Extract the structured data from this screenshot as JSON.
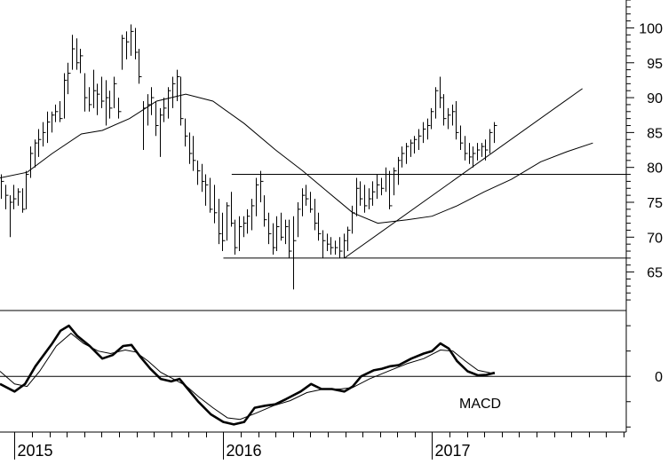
{
  "chart_data": [
    {
      "type": "bar",
      "subtype": "weekly-ohlc",
      "y_ticks": [
        65,
        70,
        75,
        80,
        85,
        90,
        95,
        100
      ],
      "ylim": [
        60.5,
        104
      ],
      "x_tick_labels": [
        {
          "label": "2015",
          "date": 2015.0
        },
        {
          "label": "2016",
          "date": 2016.0
        },
        {
          "label": "2017",
          "date": 2017.0
        }
      ],
      "xlim": [
        2014.93,
        2017.93
      ],
      "moving_average": [
        [
          2014.93,
          78.5
        ],
        [
          2015.06,
          79.3
        ],
        [
          2015.18,
          82.0
        ],
        [
          2015.32,
          84.8
        ],
        [
          2015.42,
          85.3
        ],
        [
          2015.55,
          87.0
        ],
        [
          2015.68,
          89.5
        ],
        [
          2015.82,
          90.5
        ],
        [
          2015.95,
          89.5
        ],
        [
          2016.1,
          86.3
        ],
        [
          2016.25,
          82.5
        ],
        [
          2016.38,
          79.5
        ],
        [
          2016.5,
          76.5
        ],
        [
          2016.62,
          73.5
        ],
        [
          2016.74,
          72.0
        ],
        [
          2016.88,
          72.5
        ],
        [
          2017.0,
          73.0
        ],
        [
          2017.12,
          74.5
        ],
        [
          2017.25,
          76.5
        ],
        [
          2017.38,
          78.3
        ],
        [
          2017.52,
          80.8
        ],
        [
          2017.65,
          82.3
        ],
        [
          2017.77,
          83.5
        ]
      ],
      "ohlc": [
        [
          2014.935,
          79.0,
          75.5,
          78.0
        ],
        [
          2014.955,
          77.5,
          74.0,
          76.0
        ],
        [
          2014.975,
          76.0,
          70.0,
          75.0
        ],
        [
          2014.995,
          77.5,
          74.0,
          75.5
        ],
        [
          2015.015,
          77.0,
          74.5,
          76.5
        ],
        [
          2015.035,
          77.0,
          73.5,
          74.0
        ],
        [
          2015.055,
          79.5,
          74.0,
          79.0
        ],
        [
          2015.075,
          83.0,
          78.5,
          82.0
        ],
        [
          2015.095,
          84.0,
          80.0,
          83.5
        ],
        [
          2015.115,
          85.5,
          81.5,
          84.0
        ],
        [
          2015.135,
          86.5,
          83.0,
          85.0
        ],
        [
          2015.155,
          88.0,
          83.5,
          86.5
        ],
        [
          2015.175,
          88.0,
          85.0,
          87.5
        ],
        [
          2015.195,
          89.0,
          86.5,
          88.0
        ],
        [
          2015.215,
          89.5,
          86.5,
          87.0
        ],
        [
          2015.235,
          93.5,
          87.0,
          92.5
        ],
        [
          2015.255,
          95.0,
          90.5,
          93.5
        ],
        [
          2015.275,
          99.0,
          94.0,
          97.0
        ],
        [
          2015.295,
          98.5,
          94.0,
          95.0
        ],
        [
          2015.315,
          97.0,
          93.5,
          96.0
        ],
        [
          2015.335,
          93.5,
          88.0,
          90.0
        ],
        [
          2015.355,
          91.5,
          88.0,
          89.0
        ],
        [
          2015.375,
          94.0,
          88.5,
          91.0
        ],
        [
          2015.395,
          92.0,
          87.5,
          90.5
        ],
        [
          2015.415,
          93.0,
          88.5,
          89.5
        ],
        [
          2015.435,
          92.5,
          86.0,
          90.0
        ],
        [
          2015.455,
          91.0,
          87.0,
          88.5
        ],
        [
          2015.475,
          93.0,
          88.5,
          92.0
        ],
        [
          2015.495,
          90.0,
          87.0,
          88.0
        ],
        [
          2015.515,
          99.0,
          94.0,
          98.5
        ],
        [
          2015.535,
          99.5,
          95.5,
          98.0
        ],
        [
          2015.555,
          100.5,
          96.0,
          99.5
        ],
        [
          2015.575,
          100.0,
          95.5,
          96.5
        ],
        [
          2015.595,
          97.0,
          92.0,
          93.0
        ],
        [
          2015.615,
          89.5,
          82.5,
          88.5
        ],
        [
          2015.635,
          90.5,
          86.0,
          89.0
        ],
        [
          2015.655,
          91.5,
          87.5,
          90.0
        ],
        [
          2015.675,
          89.5,
          84.5,
          86.0
        ],
        [
          2015.695,
          88.5,
          81.5,
          87.5
        ],
        [
          2015.715,
          90.0,
          86.5,
          88.5
        ],
        [
          2015.735,
          91.5,
          87.0,
          91.0
        ],
        [
          2015.755,
          93.0,
          88.5,
          92.0
        ],
        [
          2015.775,
          94.0,
          89.5,
          93.0
        ],
        [
          2015.795,
          93.0,
          86.0,
          87.0
        ],
        [
          2015.815,
          87.0,
          83.0,
          84.5
        ],
        [
          2015.835,
          85.0,
          80.5,
          82.0
        ],
        [
          2015.855,
          84.5,
          79.5,
          81.0
        ],
        [
          2015.875,
          81.0,
          77.5,
          79.5
        ],
        [
          2015.895,
          80.5,
          76.5,
          78.0
        ],
        [
          2015.915,
          79.0,
          74.5,
          77.5
        ],
        [
          2015.935,
          78.5,
          73.5,
          74.0
        ],
        [
          2015.955,
          77.5,
          72.0,
          73.5
        ],
        [
          2015.975,
          75.5,
          69.0,
          70.5
        ],
        [
          2015.995,
          73.5,
          68.0,
          69.5
        ],
        [
          2016.015,
          75.0,
          69.5,
          74.5
        ],
        [
          2016.035,
          76.5,
          71.5,
          72.0
        ],
        [
          2016.055,
          72.5,
          67.5,
          68.5
        ],
        [
          2016.075,
          73.0,
          68.0,
          71.5
        ],
        [
          2016.095,
          73.0,
          70.0,
          72.0
        ],
        [
          2016.115,
          74.0,
          70.5,
          73.0
        ],
        [
          2016.135,
          75.5,
          71.0,
          74.5
        ],
        [
          2016.155,
          78.5,
          73.0,
          77.5
        ],
        [
          2016.175,
          79.5,
          75.0,
          78.0
        ],
        [
          2016.195,
          76.0,
          71.5,
          72.5
        ],
        [
          2016.215,
          73.5,
          69.0,
          70.5
        ],
        [
          2016.235,
          72.0,
          67.5,
          68.5
        ],
        [
          2016.255,
          73.0,
          68.0,
          71.5
        ],
        [
          2016.275,
          73.5,
          69.5,
          70.0
        ],
        [
          2016.295,
          72.5,
          69.0,
          71.5
        ],
        [
          2016.315,
          72.5,
          67.0,
          68.0
        ],
        [
          2016.335,
          73.0,
          62.5,
          69.5
        ],
        [
          2016.355,
          75.0,
          70.0,
          74.0
        ],
        [
          2016.375,
          77.0,
          73.0,
          76.0
        ],
        [
          2016.395,
          77.5,
          74.5,
          75.5
        ],
        [
          2016.415,
          76.5,
          73.5,
          74.0
        ],
        [
          2016.435,
          75.5,
          71.0,
          72.0
        ],
        [
          2016.455,
          73.5,
          69.5,
          70.5
        ],
        [
          2016.475,
          71.0,
          67.0,
          69.5
        ],
        [
          2016.495,
          70.5,
          68.0,
          69.0
        ],
        [
          2016.515,
          70.0,
          67.5,
          68.5
        ],
        [
          2016.535,
          69.5,
          67.5,
          68.5
        ],
        [
          2016.555,
          70.0,
          67.0,
          68.0
        ],
        [
          2016.575,
          70.5,
          67.0,
          69.5
        ],
        [
          2016.595,
          71.5,
          68.0,
          71.0
        ],
        [
          2016.615,
          74.5,
          70.5,
          73.5
        ],
        [
          2016.635,
          78.5,
          73.0,
          77.0
        ],
        [
          2016.655,
          78.0,
          74.5,
          75.5
        ],
        [
          2016.675,
          77.5,
          73.5,
          74.5
        ],
        [
          2016.695,
          77.0,
          74.0,
          75.5
        ],
        [
          2016.715,
          78.0,
          74.5,
          76.5
        ],
        [
          2016.735,
          79.0,
          75.5,
          77.5
        ],
        [
          2016.755,
          78.5,
          76.0,
          77.0
        ],
        [
          2016.775,
          80.0,
          76.5,
          79.0
        ],
        [
          2016.795,
          79.5,
          74.0,
          74.5
        ],
        [
          2016.815,
          80.0,
          76.0,
          79.5
        ],
        [
          2016.835,
          81.5,
          77.5,
          81.0
        ],
        [
          2016.855,
          83.0,
          80.0,
          82.0
        ],
        [
          2016.875,
          83.5,
          80.5,
          83.0
        ],
        [
          2016.895,
          84.0,
          81.5,
          83.5
        ],
        [
          2016.915,
          84.5,
          82.0,
          84.0
        ],
        [
          2016.935,
          85.5,
          82.5,
          84.5
        ],
        [
          2016.955,
          86.5,
          83.5,
          85.5
        ],
        [
          2016.975,
          87.0,
          84.0,
          86.0
        ],
        [
          2016.995,
          88.5,
          85.5,
          88.0
        ],
        [
          2017.015,
          91.5,
          87.0,
          91.0
        ],
        [
          2017.035,
          93.0,
          88.5,
          90.0
        ],
        [
          2017.055,
          90.5,
          86.0,
          87.0
        ],
        [
          2017.075,
          88.5,
          85.5,
          87.5
        ],
        [
          2017.095,
          89.0,
          86.0,
          88.0
        ],
        [
          2017.115,
          89.5,
          84.0,
          85.0
        ],
        [
          2017.135,
          86.0,
          82.5,
          83.5
        ],
        [
          2017.155,
          84.5,
          81.0,
          82.0
        ],
        [
          2017.175,
          83.5,
          80.5,
          81.5
        ],
        [
          2017.195,
          83.0,
          80.0,
          82.0
        ],
        [
          2017.215,
          83.5,
          81.0,
          82.5
        ],
        [
          2017.235,
          83.5,
          81.5,
          83.0
        ],
        [
          2017.255,
          84.0,
          81.0,
          82.5
        ],
        [
          2017.275,
          85.5,
          82.0,
          85.0
        ],
        [
          2017.295,
          86.5,
          83.5,
          86.0
        ]
      ],
      "lines": [
        {
          "kind": "horizontal",
          "y": 79.0,
          "x_start": 2016.04
        },
        {
          "kind": "horizontal",
          "y": 67.0,
          "x_start": 2016.0
        },
        {
          "kind": "trendline",
          "points": [
            [
              2016.58,
              67.0
            ],
            [
              2017.72,
              91.3
            ]
          ]
        }
      ]
    },
    {
      "type": "line",
      "label": "MACD",
      "zero_tick": "0",
      "ylim": [
        -1.1,
        1.3
      ],
      "xlim": [
        2014.93,
        2017.93
      ],
      "series": [
        {
          "values": [
            [
              2014.93,
              -0.15
            ],
            [
              2015.0,
              -0.3
            ],
            [
              2015.05,
              -0.15
            ],
            [
              2015.1,
              0.2
            ],
            [
              2015.18,
              0.65
            ],
            [
              2015.22,
              0.9
            ],
            [
              2015.26,
              1.0
            ],
            [
              2015.3,
              0.8
            ],
            [
              2015.36,
              0.6
            ],
            [
              2015.42,
              0.35
            ],
            [
              2015.47,
              0.42
            ],
            [
              2015.52,
              0.6
            ],
            [
              2015.56,
              0.62
            ],
            [
              2015.6,
              0.4
            ],
            [
              2015.65,
              0.15
            ],
            [
              2015.7,
              -0.05
            ],
            [
              2015.75,
              -0.1
            ],
            [
              2015.79,
              -0.05
            ],
            [
              2015.83,
              -0.25
            ],
            [
              2015.88,
              -0.5
            ],
            [
              2015.94,
              -0.75
            ],
            [
              2016.0,
              -0.9
            ],
            [
              2016.05,
              -0.95
            ],
            [
              2016.1,
              -0.9
            ],
            [
              2016.15,
              -0.62
            ],
            [
              2016.2,
              -0.58
            ],
            [
              2016.25,
              -0.55
            ],
            [
              2016.3,
              -0.45
            ],
            [
              2016.37,
              -0.3
            ],
            [
              2016.42,
              -0.15
            ],
            [
              2016.47,
              -0.25
            ],
            [
              2016.52,
              -0.25
            ],
            [
              2016.58,
              -0.3
            ],
            [
              2016.62,
              -0.2
            ],
            [
              2016.66,
              0.0
            ],
            [
              2016.72,
              0.12
            ],
            [
              2016.76,
              0.15
            ],
            [
              2016.8,
              0.2
            ],
            [
              2016.84,
              0.22
            ],
            [
              2016.9,
              0.35
            ],
            [
              2016.96,
              0.45
            ],
            [
              2017.0,
              0.5
            ],
            [
              2017.04,
              0.65
            ],
            [
              2017.08,
              0.55
            ],
            [
              2017.12,
              0.3
            ],
            [
              2017.17,
              0.1
            ],
            [
              2017.22,
              0.02
            ],
            [
              2017.26,
              0.03
            ],
            [
              2017.3,
              0.07
            ]
          ]
        },
        {
          "values": [
            [
              2014.93,
              0.1
            ],
            [
              2015.0,
              -0.15
            ],
            [
              2015.06,
              -0.2
            ],
            [
              2015.12,
              0.1
            ],
            [
              2015.2,
              0.6
            ],
            [
              2015.27,
              0.85
            ],
            [
              2015.33,
              0.65
            ],
            [
              2015.4,
              0.5
            ],
            [
              2015.46,
              0.45
            ],
            [
              2015.53,
              0.52
            ],
            [
              2015.58,
              0.48
            ],
            [
              2015.64,
              0.3
            ],
            [
              2015.7,
              0.08
            ],
            [
              2015.76,
              -0.05
            ],
            [
              2015.82,
              -0.18
            ],
            [
              2015.88,
              -0.4
            ],
            [
              2015.95,
              -0.62
            ],
            [
              2016.02,
              -0.82
            ],
            [
              2016.08,
              -0.85
            ],
            [
              2016.16,
              -0.72
            ],
            [
              2016.24,
              -0.58
            ],
            [
              2016.32,
              -0.48
            ],
            [
              2016.4,
              -0.32
            ],
            [
              2016.48,
              -0.25
            ],
            [
              2016.56,
              -0.25
            ],
            [
              2016.62,
              -0.22
            ],
            [
              2016.7,
              -0.05
            ],
            [
              2016.8,
              0.12
            ],
            [
              2016.88,
              0.25
            ],
            [
              2016.96,
              0.35
            ],
            [
              2017.04,
              0.52
            ],
            [
              2017.1,
              0.5
            ],
            [
              2017.16,
              0.3
            ],
            [
              2017.22,
              0.12
            ],
            [
              2017.3,
              0.05
            ]
          ]
        }
      ]
    }
  ]
}
